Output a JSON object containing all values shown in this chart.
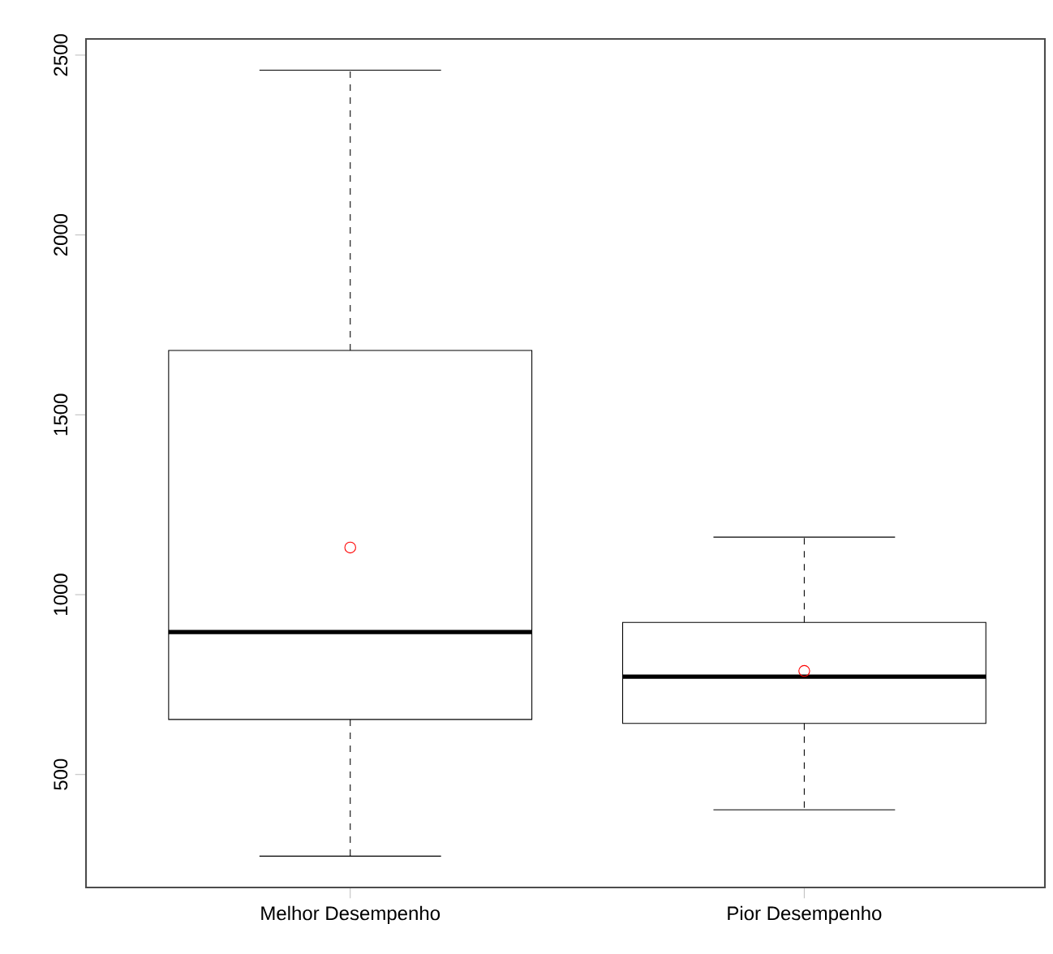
{
  "chart_data": {
    "type": "box",
    "categories": [
      "Melhor Desempenho",
      "Pior Desempenho"
    ],
    "series": [
      {
        "color": "#000000",
        "boxes": [
          {
            "low": 273,
            "q1": 653,
            "median": 896,
            "q3": 1679,
            "high": 2458,
            "mean": 1131
          },
          {
            "low": 402,
            "q1": 642,
            "median": 772,
            "q3": 923,
            "high": 1160,
            "mean": 788
          }
        ]
      }
    ],
    "ylim": [
      186,
      2545
    ],
    "yticks": [
      500,
      1000,
      1500,
      2000,
      2500
    ],
    "grid": false
  }
}
